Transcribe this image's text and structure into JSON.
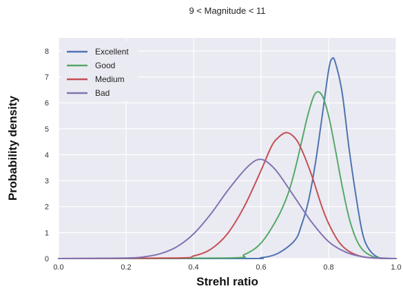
{
  "chart_data": {
    "type": "line",
    "title": "9 < Magnitude < 11",
    "xlabel": "Strehl ratio",
    "ylabel": "Probability density",
    "xlim": [
      0.0,
      1.0
    ],
    "ylim": [
      0,
      8.5
    ],
    "xticks": [
      "0.0",
      "0.2",
      "0.4",
      "0.6",
      "0.8",
      "1.0"
    ],
    "yticks": [
      "0",
      "1",
      "2",
      "3",
      "4",
      "5",
      "6",
      "7",
      "8"
    ],
    "grid": true,
    "legend_position": "top-left",
    "series": [
      {
        "name": "Excellent",
        "color": "#4c72b0",
        "x": [
          0.0,
          0.55,
          0.6,
          0.65,
          0.7,
          0.72,
          0.74,
          0.76,
          0.78,
          0.8,
          0.81,
          0.82,
          0.84,
          0.86,
          0.88,
          0.9,
          0.92,
          0.95,
          1.0
        ],
        "y": [
          0.0,
          0.0,
          0.03,
          0.2,
          0.7,
          1.3,
          2.2,
          3.6,
          5.4,
          7.25,
          7.7,
          7.55,
          6.4,
          4.3,
          2.5,
          1.0,
          0.35,
          0.03,
          0.0
        ]
      },
      {
        "name": "Good",
        "color": "#55a868",
        "x": [
          0.0,
          0.5,
          0.55,
          0.6,
          0.65,
          0.68,
          0.7,
          0.72,
          0.74,
          0.76,
          0.78,
          0.8,
          0.82,
          0.84,
          0.86,
          0.88,
          0.9,
          0.93,
          0.96,
          1.0
        ],
        "y": [
          0.0,
          0.02,
          0.15,
          0.6,
          1.6,
          2.5,
          3.4,
          4.5,
          5.6,
          6.35,
          6.3,
          5.5,
          4.2,
          2.8,
          1.6,
          0.8,
          0.35,
          0.08,
          0.01,
          0.0
        ]
      },
      {
        "name": "Medium",
        "color": "#c44e52",
        "x": [
          0.0,
          0.35,
          0.4,
          0.45,
          0.5,
          0.55,
          0.6,
          0.63,
          0.65,
          0.675,
          0.7,
          0.72,
          0.75,
          0.78,
          0.8,
          0.83,
          0.86,
          0.9,
          0.95,
          1.0
        ],
        "y": [
          0.0,
          0.02,
          0.1,
          0.35,
          0.95,
          2.0,
          3.4,
          4.3,
          4.65,
          4.85,
          4.65,
          4.2,
          3.2,
          2.0,
          1.35,
          0.65,
          0.28,
          0.07,
          0.01,
          0.0
        ]
      },
      {
        "name": "Bad",
        "color": "#8172b2",
        "x": [
          0.0,
          0.2,
          0.25,
          0.3,
          0.35,
          0.4,
          0.45,
          0.5,
          0.55,
          0.58,
          0.6,
          0.62,
          0.65,
          0.7,
          0.75,
          0.8,
          0.85,
          0.9,
          0.95,
          1.0
        ],
        "y": [
          0.0,
          0.02,
          0.06,
          0.18,
          0.45,
          0.95,
          1.7,
          2.6,
          3.4,
          3.75,
          3.82,
          3.7,
          3.3,
          2.35,
          1.4,
          0.65,
          0.25,
          0.07,
          0.01,
          0.0
        ]
      }
    ]
  }
}
